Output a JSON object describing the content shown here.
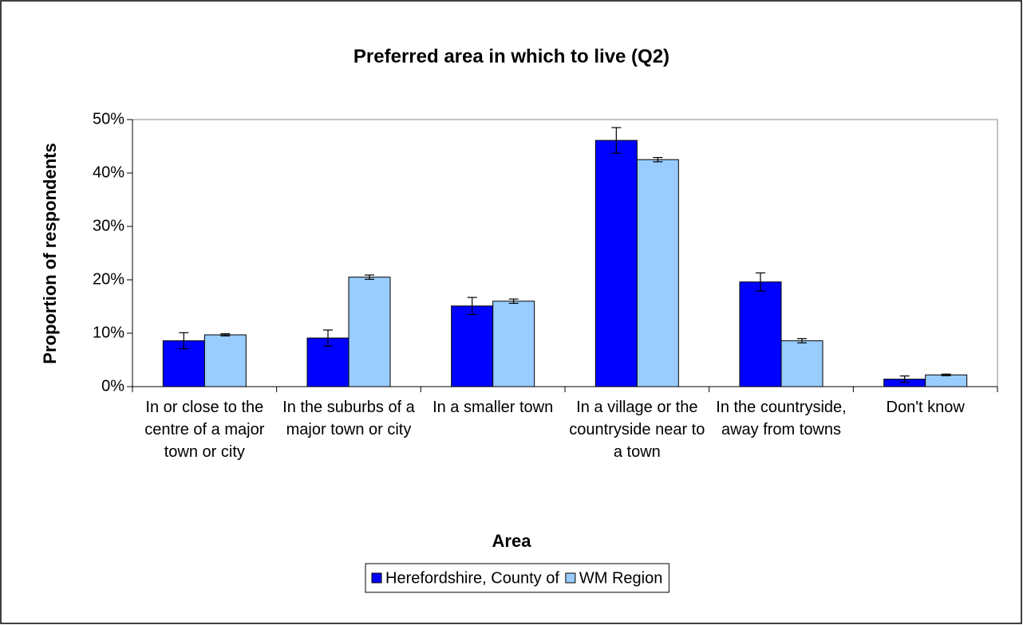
{
  "chart_data": {
    "type": "bar",
    "title": "Preferred area in which to live (Q2)",
    "xlabel": "Area",
    "ylabel": "Proportion of respondents",
    "categories": [
      "In or close to the centre of a major town or city",
      "In the suburbs of a major town or city",
      "In a smaller town",
      "In a village or the countryside near to a town",
      "In the countryside, away from towns",
      "Don't know"
    ],
    "series": [
      {
        "name": "Herefordshire, County of",
        "color": "#0000ff",
        "values": [
          8.6,
          9.1,
          15.1,
          46.1,
          19.6,
          1.4
        ],
        "errors": [
          1.5,
          1.5,
          1.6,
          2.4,
          1.7,
          0.6
        ]
      },
      {
        "name": "WM Region",
        "color": "#99ccff",
        "values": [
          9.7,
          20.5,
          16.0,
          42.5,
          8.6,
          2.2
        ],
        "errors": [
          0.2,
          0.4,
          0.4,
          0.4,
          0.4,
          0.15
        ]
      }
    ],
    "ylim": [
      0,
      50
    ],
    "yticks": [
      {
        "value": 0,
        "label": "0%"
      },
      {
        "value": 10,
        "label": "10%"
      },
      {
        "value": 20,
        "label": "20%"
      },
      {
        "value": 30,
        "label": "30%"
      },
      {
        "value": 40,
        "label": "40%"
      },
      {
        "value": 50,
        "label": "50%"
      }
    ],
    "legend": "bottom"
  }
}
